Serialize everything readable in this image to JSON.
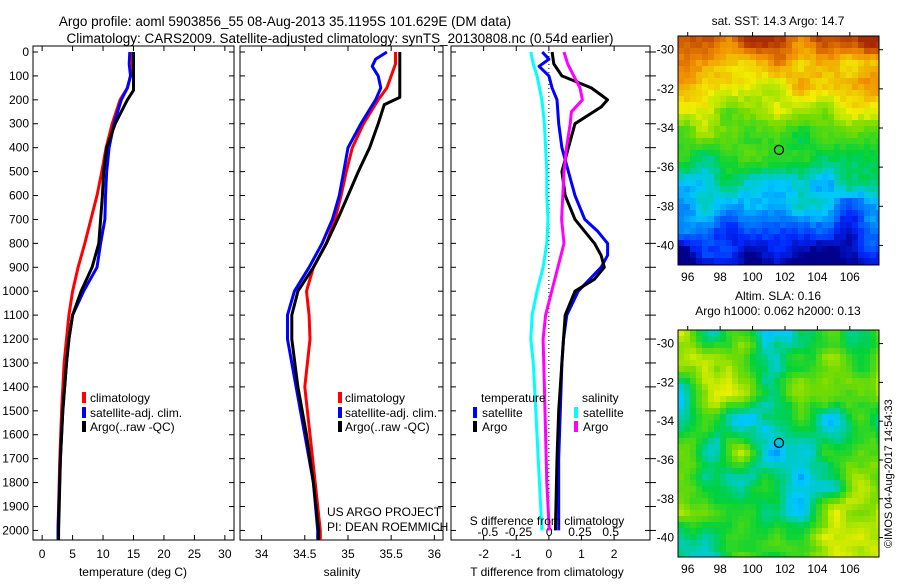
{
  "header": {
    "title_line1": "Argo profile: aoml 5903856_55 08-Aug-2013 35.1195S 101.629E (DM data)",
    "title_line2": "Climatology: CARS2009. Satellite-adjusted climatology: synTS_20130808.nc (0.54d earlier)"
  },
  "colors": {
    "climatology": "#ff0000",
    "satellite": "#0000ff",
    "argo": "#000000",
    "s_satellite": "#00ffff",
    "s_argo": "#ff00ff"
  },
  "chart_data": [
    {
      "type": "line",
      "name": "temperature",
      "xlabel": "temperature (deg C)",
      "ylabel": "",
      "xlim": [
        -1.5,
        31.5
      ],
      "ylim": [
        2040,
        -25
      ],
      "xticks": [
        "0",
        "5",
        "10",
        "15",
        "20",
        "25",
        "30"
      ],
      "xtick_values": [
        0,
        5,
        10,
        15,
        20,
        25,
        30
      ],
      "yticks": [
        "0",
        "100",
        "200",
        "300",
        "400",
        "500",
        "600",
        "700",
        "800",
        "900",
        "1000",
        "1100",
        "1200",
        "1300",
        "1400",
        "1500",
        "1600",
        "1700",
        "1800",
        "1900",
        "2000"
      ],
      "legend": [
        "climatology",
        "satellite-adj. clim.",
        "Argo(..raw -QC)"
      ],
      "series": [
        {
          "name": "climatology",
          "depth": [
            0,
            50,
            100,
            150,
            200,
            300,
            400,
            500,
            600,
            700,
            800,
            900,
            1000,
            1100,
            1200,
            1300,
            1500,
            1700,
            2000,
            2040
          ],
          "values": [
            14.8,
            14.8,
            14.5,
            14,
            12.8,
            11.5,
            10.5,
            9.8,
            9,
            8,
            7,
            5.9,
            5,
            4.4,
            4,
            3.6,
            3.2,
            2.9,
            2.6,
            2.6
          ]
        },
        {
          "name": "satellite-adj. clim.",
          "depth": [
            0,
            50,
            100,
            150,
            200,
            300,
            400,
            500,
            600,
            700,
            800,
            900,
            1000,
            1100,
            1200,
            1300,
            1500,
            1700,
            2000,
            2040
          ],
          "values": [
            14.4,
            14.3,
            14.5,
            14,
            13,
            11.8,
            11,
            10.6,
            10.4,
            10.3,
            9.6,
            9,
            6.8,
            5,
            4.4,
            4,
            3.4,
            3,
            2.6,
            2.6
          ]
        },
        {
          "name": "Argo(..raw -QC)",
          "depth": [
            0,
            50,
            100,
            160,
            200,
            300,
            400,
            500,
            600,
            700,
            800,
            900,
            1000,
            1100,
            1200,
            1300,
            1500,
            1700,
            2000,
            2040
          ],
          "values": [
            15,
            15,
            15,
            15,
            14,
            12,
            10.6,
            10.1,
            9.9,
            9.6,
            9.3,
            8.2,
            6.4,
            5,
            4.4,
            4,
            3.4,
            3,
            2.7,
            2.7
          ]
        }
      ]
    },
    {
      "type": "line",
      "name": "salinity",
      "xlabel": "salinity",
      "xlim": [
        33.75,
        36.1
      ],
      "ylim": [
        2040,
        -25
      ],
      "xticks": [
        "34",
        "34.5",
        "35",
        "35.5",
        "36"
      ],
      "xtick_values": [
        34,
        34.5,
        35,
        35.5,
        36
      ],
      "legend": [
        "climatology",
        "satellite-adj. clim.",
        "Argo(..raw -QC)"
      ],
      "annotation": [
        "US ARGO PROJECT",
        "PI: DEAN ROEMMICH"
      ],
      "series": [
        {
          "name": "climatology",
          "depth": [
            0,
            50,
            100,
            150,
            200,
            300,
            400,
            500,
            600,
            700,
            800,
            900,
            1000,
            1100,
            1200,
            1400,
            1600,
            1800,
            2000,
            2040
          ],
          "values": [
            35.55,
            35.55,
            35.5,
            35.45,
            35.35,
            35.18,
            35.05,
            34.98,
            34.92,
            34.85,
            34.75,
            34.6,
            34.52,
            34.55,
            34.56,
            34.5,
            34.56,
            34.62,
            34.68,
            34.68
          ]
        },
        {
          "name": "satellite-adj. clim.",
          "depth": [
            0,
            30,
            60,
            100,
            150,
            200,
            300,
            400,
            500,
            600,
            700,
            800,
            900,
            1000,
            1100,
            1200,
            1400,
            1600,
            1800,
            2000,
            2040
          ],
          "values": [
            35.45,
            35.32,
            35.28,
            35.35,
            35.38,
            35.32,
            35.15,
            35.0,
            34.95,
            34.9,
            34.82,
            34.7,
            34.55,
            34.38,
            34.3,
            34.3,
            34.4,
            34.5,
            34.6,
            34.65,
            34.65
          ]
        },
        {
          "name": "Argo(..raw -QC)",
          "depth": [
            0,
            50,
            100,
            150,
            190,
            220,
            300,
            400,
            500,
            600,
            700,
            800,
            900,
            1000,
            1100,
            1200,
            1400,
            1600,
            1800,
            2000,
            2040
          ],
          "values": [
            35.6,
            35.6,
            35.6,
            35.6,
            35.6,
            35.42,
            35.35,
            35.25,
            35.12,
            35.0,
            34.88,
            34.75,
            34.6,
            34.42,
            34.35,
            34.35,
            34.42,
            34.52,
            34.6,
            34.66,
            34.66
          ]
        }
      ]
    },
    {
      "type": "line",
      "name": "differences",
      "xlabel": "T difference from climatology",
      "xlabel2": "S difference from climatology",
      "xlim": [
        -3,
        3.1
      ],
      "x2lim": [
        -0.8,
        0.82
      ],
      "ylim": [
        2040,
        -25
      ],
      "xticks": [
        "-2",
        "-1",
        "0",
        "1",
        "2"
      ],
      "xtick_values": [
        -2,
        -1,
        0,
        1,
        2
      ],
      "x2ticks": [
        "-0.5",
        "-0.25",
        "0",
        "0.25",
        "0.5"
      ],
      "x2tick_values": [
        -0.5,
        -0.25,
        0,
        0.25,
        0.5
      ],
      "legend_temperature": {
        "title": "temperature",
        "items": [
          "satellite",
          "Argo"
        ]
      },
      "legend_salinity": {
        "title": "salinity",
        "items": [
          "satellite",
          "Argo"
        ]
      },
      "series": [
        {
          "name": "T satellite",
          "axis": "T",
          "depth": [
            0,
            30,
            60,
            100,
            150,
            200,
            300,
            400,
            500,
            600,
            700,
            750,
            800,
            850,
            900,
            1000,
            1100,
            1200,
            1300,
            1500,
            1700,
            2000
          ],
          "values": [
            -0.2,
            0.0,
            -0.3,
            0.0,
            0.1,
            0.25,
            0.3,
            0.4,
            0.6,
            0.8,
            1.1,
            1.5,
            1.8,
            1.8,
            1.6,
            0.9,
            0.55,
            0.45,
            0.4,
            0.35,
            0.3,
            0.3
          ]
        },
        {
          "name": "T Argo",
          "axis": "T",
          "depth": [
            0,
            50,
            100,
            150,
            180,
            200,
            230,
            300,
            400,
            500,
            600,
            700,
            800,
            850,
            900,
            950,
            1000,
            1100,
            1200,
            1300,
            1500,
            1700,
            2000
          ],
          "values": [
            0.1,
            0.15,
            0.4,
            1.3,
            1.6,
            1.8,
            1.6,
            0.8,
            0.6,
            0.4,
            0.5,
            0.8,
            1.4,
            1.6,
            1.7,
            1.4,
            0.8,
            0.5,
            0.45,
            0.4,
            0.3,
            0.25,
            0.2
          ]
        },
        {
          "name": "S satellite",
          "axis": "S",
          "depth": [
            0,
            50,
            100,
            200,
            300,
            400,
            500,
            600,
            700,
            800,
            900,
            1000,
            1100,
            1200,
            1300,
            1500,
            1700,
            2000
          ],
          "values": [
            -0.15,
            -0.13,
            -0.1,
            -0.06,
            -0.04,
            -0.03,
            -0.02,
            -0.02,
            -0.01,
            -0.02,
            -0.05,
            -0.1,
            -0.14,
            -0.15,
            -0.13,
            -0.11,
            -0.09,
            -0.06
          ]
        },
        {
          "name": "S Argo",
          "axis": "S",
          "depth": [
            0,
            50,
            100,
            150,
            200,
            250,
            300,
            400,
            500,
            600,
            700,
            800,
            900,
            1000,
            1100,
            1200,
            1400,
            1600,
            1800,
            2000
          ],
          "values": [
            0.12,
            0.15,
            0.2,
            0.25,
            0.27,
            0.18,
            0.17,
            0.14,
            0.12,
            0.11,
            0.1,
            0.12,
            0.07,
            0.02,
            -0.03,
            -0.05,
            -0.04,
            -0.03,
            -0.02,
            0.0
          ]
        }
      ]
    },
    {
      "type": "heatmap",
      "name": "sst-map",
      "title": "sat. SST: 14.3  Argo: 14.7",
      "xlim": [
        95.4,
        107.8
      ],
      "ylim": [
        -41,
        -29.3
      ],
      "xticks": [
        "96",
        "98",
        "100",
        "102",
        "104",
        "106"
      ],
      "xtick_values": [
        96,
        98,
        100,
        102,
        104,
        106
      ],
      "yticks": [
        "-30",
        "-32",
        "-34",
        "-36",
        "-38",
        "-40"
      ],
      "ytick_values": [
        -30,
        -32,
        -34,
        -36,
        -38,
        -40
      ],
      "marker": {
        "lon": 101.629,
        "lat": -35.1195
      }
    },
    {
      "type": "heatmap",
      "name": "sla-map",
      "title": "Altim. SLA: 0.16",
      "subtitle": "Argo h1000: 0.062 h2000: 0.13",
      "xlim": [
        95.4,
        107.8
      ],
      "ylim": [
        -41,
        -29.3
      ],
      "xticks": [
        "96",
        "98",
        "100",
        "102",
        "104",
        "106"
      ],
      "xtick_values": [
        96,
        98,
        100,
        102,
        104,
        106
      ],
      "yticks": [
        "-30",
        "-32",
        "-34",
        "-36",
        "-38",
        "-40"
      ],
      "ytick_values": [
        -30,
        -32,
        -34,
        -36,
        -38,
        -40
      ],
      "marker": {
        "lon": 101.629,
        "lat": -35.1195
      }
    }
  ],
  "footer": {
    "credit": "©IMOS 04-Aug-2017 14:54:33"
  }
}
